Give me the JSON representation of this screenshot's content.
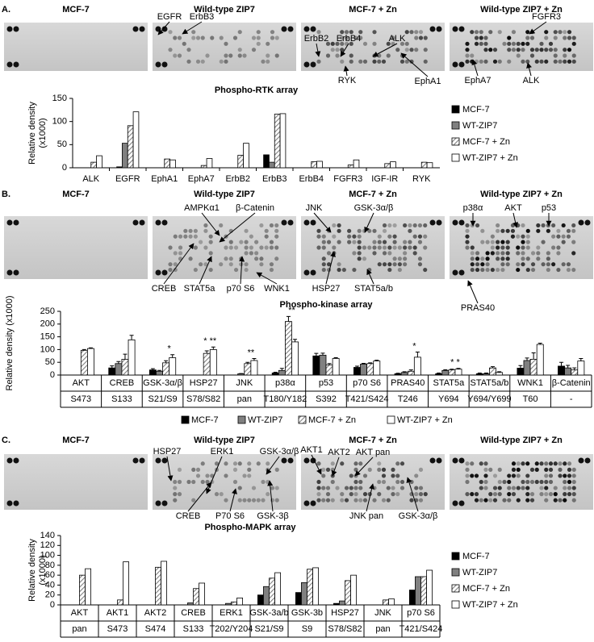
{
  "panels": [
    {
      "label": "A.",
      "blots": [
        {
          "title": "MCF-7",
          "annotations": []
        },
        {
          "title": "Wild-type ZIP7",
          "annotations": [
            "EGFR",
            "ErbB3"
          ]
        },
        {
          "title": "MCF-7 + Zn",
          "annotations": [
            "ErbB2",
            "ErbB4",
            "ALK",
            "RYK",
            "EphA1"
          ]
        },
        {
          "title": "Wild-type ZIP7 + Zn",
          "annotations": [
            "FGFR3",
            "EphA7",
            "ALK"
          ]
        }
      ]
    },
    {
      "label": "B.",
      "blots": [
        {
          "title": "MCF-7",
          "annotations": []
        },
        {
          "title": "Wild-type ZIP7",
          "annotations": [
            "AMPKα1",
            "β-Catenin",
            "CREB",
            "STAT5a",
            "p70 S6",
            "WNK1"
          ]
        },
        {
          "title": "MCF-7 + Zn",
          "annotations": [
            "JNK",
            "GSK-3α/β",
            "HSP27",
            "STAT5a/b"
          ]
        },
        {
          "title": "Wild-type ZIP7 + Zn",
          "annotations": [
            "p38α",
            "AKT",
            "p53",
            "PRAS40"
          ]
        }
      ]
    },
    {
      "label": "C.",
      "blots": [
        {
          "title": "MCF-7",
          "annotations": []
        },
        {
          "title": "Wild-type ZIP7",
          "annotations": [
            "HSP27",
            "ERK1",
            "GSK-3α/β",
            "CREB",
            "P70 S6",
            "GSK-3β"
          ]
        },
        {
          "title": "MCF-7 + Zn",
          "annotations": [
            "AKT1",
            "AKT2",
            "AKT pan",
            "JNK pan",
            "GSK-3α/β"
          ]
        },
        {
          "title": "Wild-type ZIP7 + Zn",
          "annotations": []
        }
      ]
    }
  ],
  "chart_data": [
    {
      "type": "bar",
      "title": "Phospho-RTK array",
      "ylabel": [
        "Relative density",
        "(x1000)"
      ],
      "categories": [
        "ALK",
        "EGFR",
        "EphA1",
        "EphA7",
        "ErbB2",
        "ErbB3",
        "ErbB4",
        "FGFR3",
        "IGF-IR",
        "RYK"
      ],
      "ylim": [
        0,
        150
      ],
      "yticks": [
        0,
        50,
        100,
        150
      ],
      "legend": "right",
      "series": [
        {
          "name": "MCF-7",
          "color": "#000000",
          "hatch": false,
          "values": [
            0,
            2,
            0,
            0,
            0,
            28,
            0,
            0,
            0,
            0
          ]
        },
        {
          "name": "WT-ZIP7",
          "color": "#808080",
          "hatch": false,
          "values": [
            0,
            53,
            0,
            0,
            0,
            12,
            0,
            0,
            0,
            0
          ]
        },
        {
          "name": "MCF-7 + Zn",
          "color": "#808080",
          "hatch": true,
          "values": [
            12,
            91,
            19,
            5,
            27,
            116,
            13,
            6,
            9,
            12
          ]
        },
        {
          "name": "WT-ZIP7 + Zn",
          "color": "#ffffff",
          "hatch": false,
          "values": [
            26,
            121,
            17,
            20,
            53,
            117,
            14,
            17,
            13,
            11
          ]
        }
      ]
    },
    {
      "type": "bar",
      "title": "Phospho-kinase array",
      "ylabel": "Relative density (x1000)",
      "categories": [
        "AKT",
        "CREB",
        "GSK-3α/β",
        "HSP27",
        "JNK",
        "p38α",
        "p53",
        "p70 S6",
        "PRAS40",
        "STAT5a",
        "STAT5a/b",
        "WNK1",
        "β-Catenin"
      ],
      "category_sublabels": [
        "S473",
        "S133",
        "S21/S9",
        "S78/S82",
        "pan",
        "T180/Y182",
        "S392",
        "T421/S424",
        "T246",
        "Y694",
        "Y694/Y699",
        "T60",
        "-"
      ],
      "significance": [
        null,
        null,
        "*",
        "* **",
        "**",
        "**",
        null,
        null,
        "*",
        "* *",
        null,
        null,
        null
      ],
      "ylim": [
        0,
        250
      ],
      "yticks": [
        0,
        50,
        100,
        150,
        200,
        250
      ],
      "legend": "bottom",
      "series": [
        {
          "name": "MCF-7",
          "color": "#000000",
          "hatch": false,
          "values": [
            0,
            28,
            20,
            0,
            0,
            8,
            75,
            30,
            5,
            5,
            5,
            27,
            35
          ],
          "errors": [
            0,
            8,
            5,
            0,
            0,
            3,
            10,
            5,
            2,
            3,
            3,
            10,
            15
          ]
        },
        {
          "name": "WT-ZIP7",
          "color": "#808080",
          "hatch": false,
          "values": [
            0,
            45,
            15,
            0,
            5,
            18,
            78,
            43,
            10,
            18,
            5,
            57,
            28
          ],
          "errors": [
            0,
            8,
            3,
            0,
            1,
            8,
            8,
            3,
            3,
            3,
            3,
            10,
            10
          ]
        },
        {
          "name": "MCF-7 + Zn",
          "color": "#808080",
          "hatch": true,
          "values": [
            97,
            62,
            48,
            85,
            45,
            210,
            40,
            45,
            15,
            20,
            28,
            62,
            20
          ],
          "errors": [
            3,
            20,
            8,
            10,
            5,
            20,
            5,
            3,
            5,
            3,
            5,
            25,
            8
          ]
        },
        {
          "name": "WT-ZIP7 + Zn",
          "color": "#ffffff",
          "hatch": false,
          "values": [
            104,
            138,
            68,
            100,
            57,
            130,
            65,
            55,
            70,
            23,
            10,
            120,
            55
          ],
          "errors": [
            3,
            18,
            12,
            10,
            8,
            10,
            3,
            3,
            20,
            3,
            3,
            5,
            10
          ]
        }
      ]
    },
    {
      "type": "bar",
      "title": "Phospho-MAPK array",
      "ylabel": [
        "Relative density",
        "(x1000)"
      ],
      "categories": [
        "AKT",
        "AKT1",
        "AKT2",
        "CREB",
        "ERK1",
        "GSK-3a/b",
        "GSK-3b",
        "HSP27",
        "JNK",
        "p70 S6"
      ],
      "category_sublabels": [
        "pan",
        "S473",
        "S474",
        "S133",
        "T202/Y204",
        "S21/S9",
        "S9",
        "S78/S82",
        "pan",
        "T421/S424"
      ],
      "ylim": [
        0,
        140
      ],
      "yticks": [
        0,
        20,
        40,
        60,
        80,
        100,
        120,
        140
      ],
      "legend": "right",
      "series": [
        {
          "name": "MCF-7",
          "color": "#000000",
          "hatch": false,
          "values": [
            0,
            0,
            0,
            0,
            0,
            20,
            25,
            3,
            0,
            30
          ]
        },
        {
          "name": "WT-ZIP7",
          "color": "#808080",
          "hatch": false,
          "values": [
            0,
            0,
            0,
            4,
            3,
            37,
            45,
            8,
            0,
            57
          ]
        },
        {
          "name": "MCF-7 + Zn",
          "color": "#808080",
          "hatch": true,
          "values": [
            60,
            10,
            76,
            33,
            6,
            54,
            72,
            49,
            10,
            57
          ]
        },
        {
          "name": "WT-ZIP7 + Zn",
          "color": "#ffffff",
          "hatch": false,
          "values": [
            73,
            87,
            88,
            44,
            14,
            65,
            75,
            60,
            12,
            70
          ]
        }
      ]
    }
  ]
}
